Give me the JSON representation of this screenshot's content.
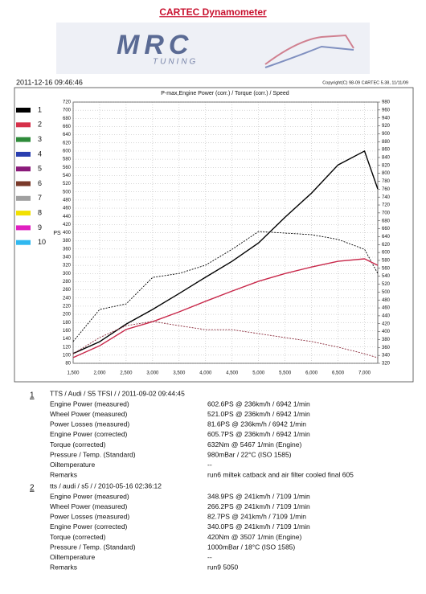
{
  "header": {
    "title": "CARTEC Dynamometer",
    "logo": "MRC",
    "logo_sub": "TUNING",
    "timestamp": "2011-12-16 09:46:46",
    "copyright": "Copyright(C) 98-09 CARTEC 5.38, 11/11/09"
  },
  "chart_data": {
    "type": "line",
    "title": "P-max,Engine Power (corr.) / Torque (corr.) / Speed",
    "y_label": "PS",
    "x": [
      1500,
      2000,
      2500,
      3000,
      3500,
      4000,
      4500,
      5000,
      5500,
      6000,
      6500,
      7000,
      7250
    ],
    "xlim": [
      1500,
      7250
    ],
    "xticks": [
      {
        "value": 1500,
        "label": "1,500"
      },
      {
        "value": 2000,
        "label": "2,000"
      },
      {
        "value": 2500,
        "label": "2,500"
      },
      {
        "value": 3000,
        "label": "3,000"
      },
      {
        "value": 3500,
        "label": "3,500"
      },
      {
        "value": 4000,
        "label": "4,000"
      },
      {
        "value": 4500,
        "label": "4,500"
      },
      {
        "value": 5000,
        "label": "5,000"
      },
      {
        "value": 5500,
        "label": "5,500"
      },
      {
        "value": 6000,
        "label": "6,000"
      },
      {
        "value": 6500,
        "label": "6,500"
      },
      {
        "value": 7000,
        "label": "7,000"
      }
    ],
    "ylim": [
      80,
      720
    ],
    "yticks": [
      80,
      100,
      120,
      140,
      160,
      180,
      200,
      220,
      240,
      260,
      280,
      300,
      320,
      340,
      360,
      380,
      400,
      420,
      440,
      460,
      480,
      500,
      520,
      540,
      560,
      580,
      600,
      620,
      640,
      660,
      680,
      700,
      720
    ],
    "y2lim": [
      320,
      980
    ],
    "y2ticks": [
      320,
      340,
      360,
      380,
      400,
      420,
      440,
      460,
      480,
      500,
      520,
      540,
      560,
      580,
      600,
      620,
      640,
      660,
      680,
      700,
      720,
      740,
      760,
      780,
      800,
      820,
      840,
      860,
      880,
      900,
      920,
      940,
      960,
      980
    ],
    "grid": true,
    "legend": [
      "1",
      "2",
      "3",
      "4",
      "5",
      "6",
      "7",
      "8",
      "9",
      "10"
    ],
    "legend_colors": [
      "#000000",
      "#d6304a",
      "#2e8b3a",
      "#2a3fb0",
      "#8a1a7a",
      "#7a3a2a",
      "#a0a0a0",
      "#f2e000",
      "#e020c0",
      "#30b8f0"
    ],
    "series": [
      {
        "color": "#000000",
        "dash": false,
        "values": [
          104,
          133,
          176,
          212,
          251,
          291,
          330,
          375,
          438,
          497,
          566,
          600,
          507
        ]
      },
      {
        "color": "#000000",
        "dash": true,
        "axis": "y2",
        "values": [
          375,
          456,
          470,
          537,
          547,
          568,
          608,
          653,
          649,
          645,
          633,
          608,
          547
        ]
      },
      {
        "color": "#c8284a",
        "dash": false,
        "values": [
          94,
          123,
          163,
          182,
          206,
          232,
          257,
          281,
          300,
          316,
          330,
          336,
          320
        ]
      },
      {
        "color": "#8a2a3a",
        "dash": true,
        "axis": "y2",
        "values": [
          344,
          385,
          415,
          426,
          415,
          405,
          405,
          395,
          385,
          375,
          361,
          344,
          334
        ]
      }
    ]
  },
  "runs": [
    {
      "number": "1",
      "header": "TTS / Audi / S5 TFSI /  / 2011-09-02 09:44:45",
      "rows": [
        [
          "Engine Power (measured)",
          "602.6PS @ 236km/h / 6942 1/min"
        ],
        [
          "Wheel Power (measured)",
          "521.0PS @ 236km/h / 6942 1/min"
        ],
        [
          "Power Losses (measured)",
          "81.6PS @ 236km/h / 6942 1/min"
        ],
        [
          "Engine Power (corrected)",
          "605.7PS @ 236km/h / 6942 1/min"
        ],
        [
          "Torque (corrected)",
          "632Nm @ 5467 1/min (Engine)"
        ],
        [
          "Pressure / Temp. (Standard)",
          "980mBar / 22°C   (ISO 1585)"
        ],
        [
          "Oiltemperature",
          "--"
        ],
        [
          "Remarks",
          "run6 miltek catback and air filter cooled final 605"
        ]
      ]
    },
    {
      "number": "2",
      "header": "tts / audi / s5 /  / 2010-05-16 02:36:12",
      "rows": [
        [
          "Engine Power (measured)",
          "348.9PS @ 241km/h / 7109 1/min"
        ],
        [
          "Wheel Power (measured)",
          "266.2PS @ 241km/h / 7109 1/min"
        ],
        [
          "Power Losses (measured)",
          "82.7PS @ 241km/h / 7109 1/min"
        ],
        [
          "Engine Power (corrected)",
          "340.0PS @ 241km/h / 7109 1/min"
        ],
        [
          "Torque (corrected)",
          "420Nm @ 3507 1/min (Engine)"
        ],
        [
          "Pressure / Temp. (Standard)",
          "1000mBar / 18°C   (ISO 1585)"
        ],
        [
          "Oiltemperature",
          "--"
        ],
        [
          "Remarks",
          "run9 5050"
        ]
      ]
    }
  ]
}
